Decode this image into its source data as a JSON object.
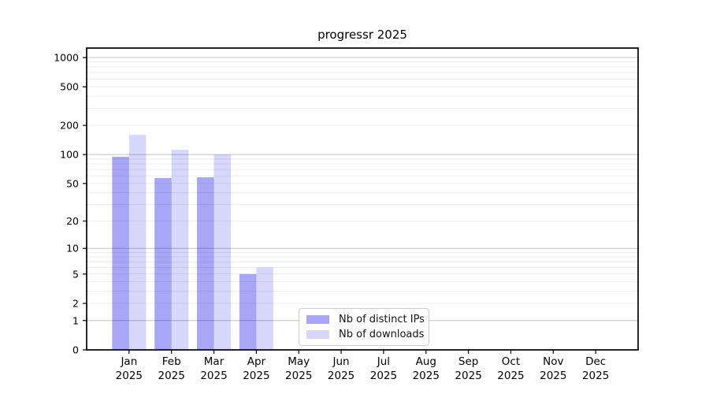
{
  "chart_data": {
    "type": "bar",
    "title": "progressr 2025",
    "categories": [
      "Jan",
      "Feb",
      "Mar",
      "Apr",
      "May",
      "Jun",
      "Jul",
      "Aug",
      "Sep",
      "Oct",
      "Nov",
      "Dec"
    ],
    "year_label": "2025",
    "series": [
      {
        "name": "Nb of distinct IPs",
        "color_hex": "#a8a8f5",
        "fill": "rgba(0,0,230,0.345)",
        "values": [
          95,
          57,
          58,
          5,
          0,
          0,
          0,
          0,
          0,
          0,
          0,
          0
        ]
      },
      {
        "name": "Nb of downloads",
        "color_hex": "#d9d9fa",
        "fill": "rgba(0,0,230,0.155)",
        "values": [
          160,
          112,
          100,
          6,
          0,
          0,
          0,
          0,
          0,
          0,
          0,
          0
        ]
      }
    ],
    "xlabel": "",
    "ylabel": "",
    "y_ticks": [
      0,
      1,
      2,
      5,
      10,
      20,
      50,
      100,
      200,
      500,
      1000
    ],
    "scale": "log1p",
    "ylim": [
      0,
      1250
    ],
    "grid": "both",
    "grid_major_values": [
      1,
      10,
      100,
      1000
    ],
    "grid_major_color": "#c9c9c9",
    "grid_minor_color": "#ededed",
    "legend_position": "lower-center",
    "axis_color": "#000000",
    "background_color": "#ffffff"
  }
}
